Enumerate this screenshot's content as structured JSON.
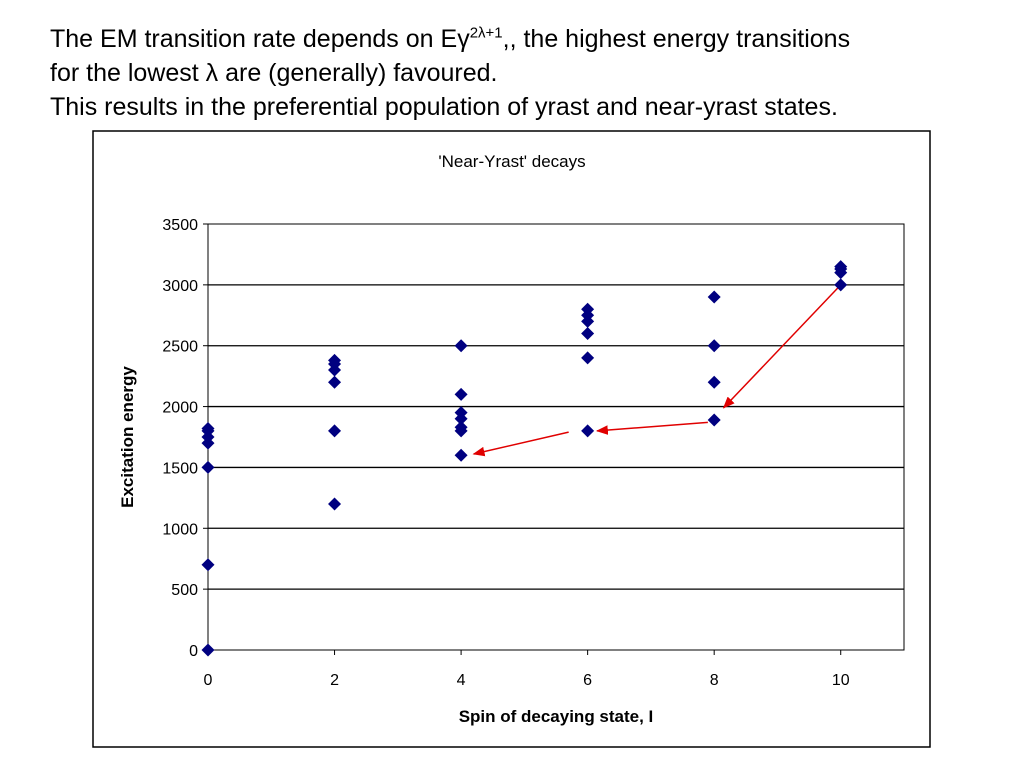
{
  "intro": {
    "line1_prefix": "The EM transition rate depends on E",
    "line1_gamma": "γ",
    "line1_exponent": "2λ+1",
    "line1_suffix": ",, the highest energy transitions",
    "line2_prefix": "for the lowest",
    "line2_lambda": "λ",
    "line2_suffix": " are (generally) favoured.",
    "line3": "This results in the preferential population of yrast and near-yrast states."
  },
  "colors": {
    "marker": "#000080",
    "arrow": "#e00000",
    "grid": "#000000"
  },
  "chart_data": {
    "type": "scatter",
    "title": "'Near-Yrast' decays",
    "xlabel": "Spin of decaying state, I",
    "ylabel": "Excitation energy",
    "xlim": [
      0,
      11
    ],
    "ylim": [
      0,
      3500
    ],
    "xticks": [
      0,
      2,
      4,
      6,
      8,
      10
    ],
    "yticks": [
      0,
      500,
      1000,
      1500,
      2000,
      2500,
      3000,
      3500
    ],
    "grid": "horizontal",
    "marker": "diamond",
    "points": [
      {
        "x": 0,
        "y": 0
      },
      {
        "x": 0,
        "y": 700
      },
      {
        "x": 0,
        "y": 1500
      },
      {
        "x": 0,
        "y": 1700
      },
      {
        "x": 0,
        "y": 1750
      },
      {
        "x": 0,
        "y": 1800
      },
      {
        "x": 0,
        "y": 1820
      },
      {
        "x": 2,
        "y": 1200
      },
      {
        "x": 2,
        "y": 1800
      },
      {
        "x": 2,
        "y": 2200
      },
      {
        "x": 2,
        "y": 2300
      },
      {
        "x": 2,
        "y": 2350
      },
      {
        "x": 2,
        "y": 2380
      },
      {
        "x": 4,
        "y": 1600
      },
      {
        "x": 4,
        "y": 1800
      },
      {
        "x": 4,
        "y": 1830
      },
      {
        "x": 4,
        "y": 1900
      },
      {
        "x": 4,
        "y": 1950
      },
      {
        "x": 4,
        "y": 2100
      },
      {
        "x": 4,
        "y": 2500
      },
      {
        "x": 6,
        "y": 1800
      },
      {
        "x": 6,
        "y": 2400
      },
      {
        "x": 6,
        "y": 2600
      },
      {
        "x": 6,
        "y": 2700
      },
      {
        "x": 6,
        "y": 2750
      },
      {
        "x": 6,
        "y": 2800
      },
      {
        "x": 8,
        "y": 1890
      },
      {
        "x": 8,
        "y": 2200
      },
      {
        "x": 8,
        "y": 2500
      },
      {
        "x": 8,
        "y": 2900
      },
      {
        "x": 10,
        "y": 3000
      },
      {
        "x": 10,
        "y": 3100
      },
      {
        "x": 10,
        "y": 3130
      },
      {
        "x": 10,
        "y": 3150
      }
    ],
    "annotations": [
      {
        "type": "arrow",
        "from": [
          10,
          3000
        ],
        "to": [
          8.15,
          1990
        ]
      },
      {
        "type": "arrow",
        "from": [
          7.9,
          1870
        ],
        "to": [
          6.15,
          1800
        ]
      },
      {
        "type": "arrow",
        "from": [
          5.7,
          1790
        ],
        "to": [
          4.2,
          1610
        ]
      }
    ]
  }
}
